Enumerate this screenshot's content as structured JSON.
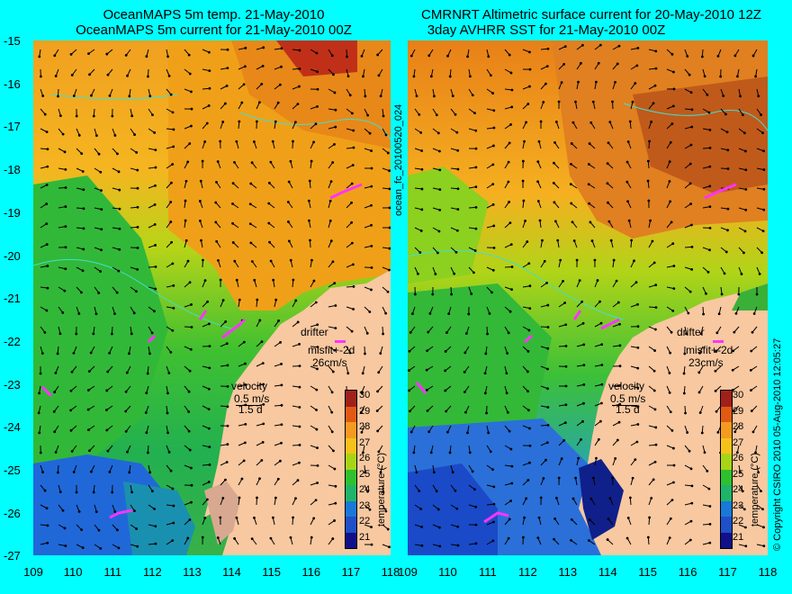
{
  "left_title": {
    "line1": "OceanMAPS 5m temp. 21-May-2010",
    "line2": "OceanMAPS 5m current for 21-May-2010 00Z"
  },
  "right_title": {
    "line1": "CMRNRT Altimetric surface current for 20-May-2010 12Z",
    "line2": "3day AVHRR SST for 21-May-2010 00Z"
  },
  "y_axis": [
    "-15",
    "-16",
    "-17",
    "-18",
    "-19",
    "-20",
    "-21",
    "-22",
    "-23",
    "-24",
    "-25",
    "-26",
    "-27"
  ],
  "x_axis_left": [
    "109",
    "110",
    "111",
    "112",
    "113",
    "114",
    "115",
    "116",
    "117",
    "118"
  ],
  "x_axis_right": [
    "109",
    "110",
    "111",
    "112",
    "113",
    "114",
    "115",
    "116",
    "117",
    "118"
  ],
  "left_panel": {
    "drifter": "drifter",
    "misfit": "misfit+-2d",
    "speed": "26cm/s",
    "velocity": "velocity",
    "scale1": "0.5 m/s",
    "scale2": "1.5 d"
  },
  "right_panel": {
    "drifter": "drifter",
    "misfit": "misfit+-2d",
    "speed": "23cm/s",
    "velocity": "velocity",
    "scale1": "0.5 m/s",
    "scale2": "1.5 d"
  },
  "colorbar": {
    "title": "temperature (°C)",
    "ticks": [
      "30",
      "29",
      "28",
      "27",
      "26",
      "25",
      "24",
      "23",
      "22",
      "21"
    ],
    "colors": [
      "#a0201a",
      "#e05a14",
      "#f59a20",
      "#f6c21a",
      "#a8d418",
      "#2fc030",
      "#1fb46a",
      "#1a78d8",
      "#1f50c8",
      "#10108a"
    ]
  },
  "sidebar_center": "ocean_fc_20100520_024",
  "sidebar_right": "© Copyright CSIRO 2010   05-Aug-2010 12:05:27",
  "colors": {
    "background": "#00ffff",
    "land": "#f8c8a0",
    "drifter": "#ff33ff",
    "coast": "#40e0d0"
  }
}
